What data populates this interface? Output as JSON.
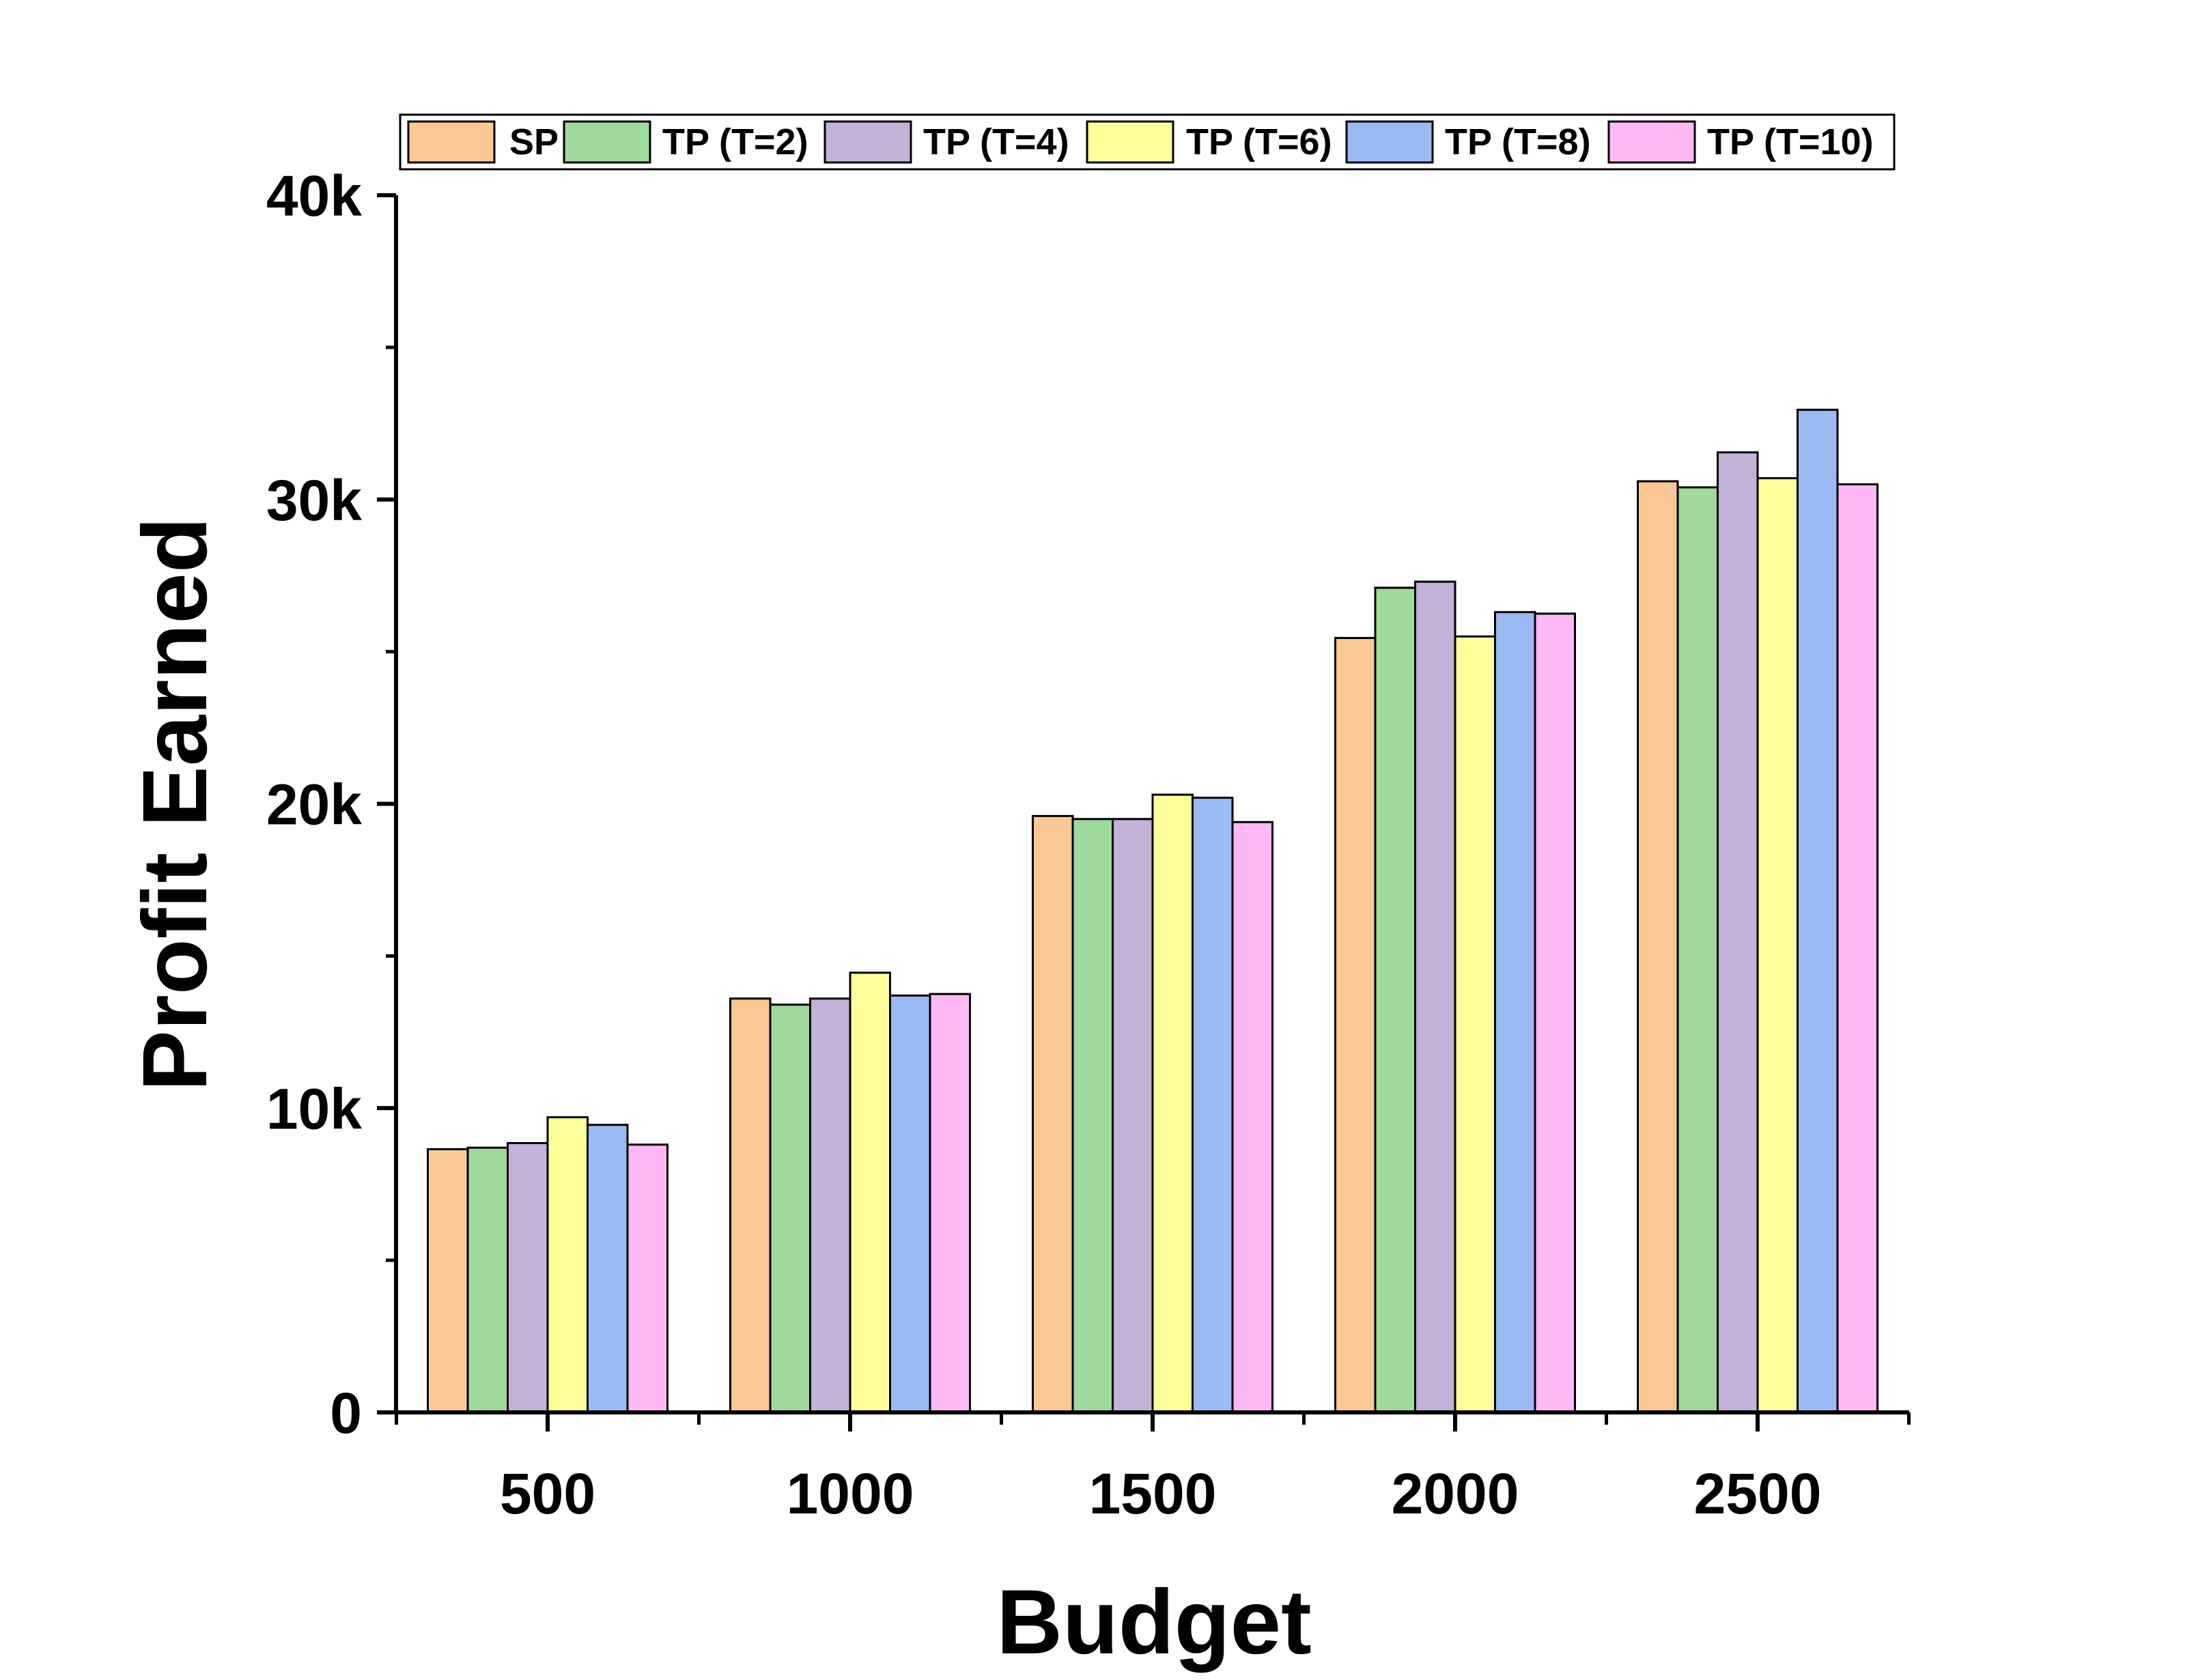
{
  "chart_data": {
    "type": "bar",
    "title": "",
    "xlabel": "Budget",
    "ylabel": "Profit Earned",
    "categories": [
      "500",
      "1000",
      "1500",
      "2000",
      "2500"
    ],
    "ylim": [
      0,
      40000
    ],
    "yticks": [
      0,
      10000,
      20000,
      30000,
      40000
    ],
    "ytick_labels": [
      "0",
      "10k",
      "20k",
      "30k",
      "40k"
    ],
    "grid": false,
    "legend_position": "top",
    "series": [
      {
        "name": "SP",
        "color": "#FBC793",
        "values": [
          8650,
          13600,
          19600,
          25450,
          30600
        ]
      },
      {
        "name": "TP (T=2)",
        "color": "#9FD99C",
        "values": [
          8700,
          13400,
          19500,
          27100,
          30400
        ]
      },
      {
        "name": "TP (T=4)",
        "color": "#C3B1D8",
        "values": [
          8850,
          13600,
          19500,
          27300,
          31550
        ]
      },
      {
        "name": "TP (T=6)",
        "color": "#FFFF99",
        "values": [
          9700,
          14450,
          20300,
          25500,
          30700
        ]
      },
      {
        "name": "TP (T=8)",
        "color": "#9BB9F2",
        "values": [
          9450,
          13700,
          20200,
          26300,
          32950
        ]
      },
      {
        "name": "TP (T=10)",
        "color": "#FDB8F5",
        "values": [
          8800,
          13750,
          19400,
          26250,
          30500
        ]
      }
    ]
  }
}
